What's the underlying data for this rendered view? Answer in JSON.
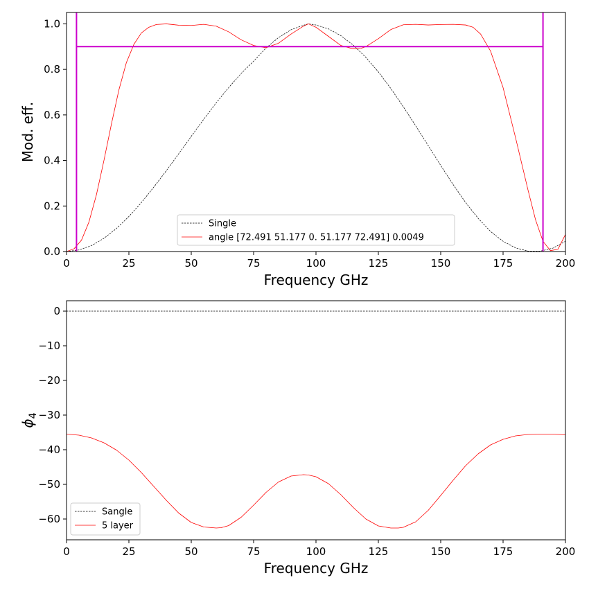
{
  "chart_data": [
    {
      "type": "line",
      "xlabel": "Frequency GHz",
      "ylabel": "Mod. eff.",
      "xlim": [
        0,
        200
      ],
      "ylim": [
        0,
        1.05
      ],
      "xticks": [
        0,
        25,
        50,
        75,
        100,
        125,
        150,
        175,
        200
      ],
      "xtick_labels": [
        "0",
        "25",
        "50",
        "75",
        "100",
        "125",
        "150",
        "175",
        "200"
      ],
      "yticks": [
        0.0,
        0.2,
        0.4,
        0.6,
        0.8,
        1.0
      ],
      "ytick_labels": [
        "0.0",
        "0.2",
        "0.4",
        "0.6",
        "0.8",
        "1.0"
      ],
      "grid": false,
      "legend_position": "bottom-center",
      "series": [
        {
          "name": "Single",
          "color": "#000000",
          "style": "dashed",
          "x": [
            0,
            5,
            10,
            15,
            20,
            25,
            30,
            35,
            40,
            45,
            50,
            55,
            60,
            65,
            70,
            75,
            80,
            85,
            90,
            95,
            97,
            100,
            105,
            110,
            115,
            120,
            125,
            130,
            135,
            140,
            145,
            150,
            155,
            160,
            165,
            170,
            175,
            180,
            185,
            190,
            195,
            200
          ],
          "y": [
            0.0,
            0.007,
            0.026,
            0.058,
            0.101,
            0.154,
            0.215,
            0.283,
            0.355,
            0.43,
            0.506,
            0.581,
            0.653,
            0.72,
            0.782,
            0.836,
            0.894,
            0.94,
            0.974,
            0.994,
            1.0,
            0.995,
            0.978,
            0.948,
            0.906,
            0.853,
            0.789,
            0.716,
            0.636,
            0.552,
            0.465,
            0.378,
            0.294,
            0.215,
            0.146,
            0.088,
            0.045,
            0.016,
            0.002,
            0.002,
            0.015,
            0.045
          ]
        },
        {
          "name": "angle [72.491 51.177  0.    51.177 72.491] 0.0049",
          "color": "#ff0000",
          "style": "solid",
          "x": [
            0,
            3,
            6,
            9,
            12,
            15,
            18,
            21,
            24,
            27,
            30,
            33,
            36,
            40,
            45,
            50,
            55,
            60,
            65,
            70,
            75,
            80,
            85,
            90,
            95,
            97,
            100,
            105,
            110,
            115,
            118,
            120,
            125,
            130,
            135,
            140,
            145,
            150,
            155,
            160,
            163,
            166,
            170,
            175,
            180,
            185,
            188,
            191,
            194,
            197,
            200
          ],
          "y": [
            0.0,
            0.012,
            0.05,
            0.13,
            0.25,
            0.4,
            0.56,
            0.71,
            0.83,
            0.91,
            0.96,
            0.985,
            0.997,
            1.0,
            0.994,
            0.993,
            0.998,
            0.99,
            0.965,
            0.93,
            0.905,
            0.895,
            0.915,
            0.955,
            0.99,
            1.0,
            0.985,
            0.945,
            0.905,
            0.89,
            0.892,
            0.9,
            0.935,
            0.975,
            0.996,
            0.998,
            0.995,
            0.997,
            0.998,
            0.995,
            0.985,
            0.955,
            0.88,
            0.72,
            0.5,
            0.27,
            0.14,
            0.045,
            0.004,
            0.01,
            0.075
          ]
        }
      ],
      "annotations": {
        "color": "#cc00cc",
        "hline_y": 0.9,
        "hline_x": [
          4,
          191
        ],
        "vlines_x": [
          4,
          191
        ]
      }
    },
    {
      "type": "line",
      "xlabel": "Frequency GHz",
      "ylabel": "ϕ",
      "ylabel_subscript": "4",
      "xlim": [
        0,
        200
      ],
      "ylim": [
        -66,
        3
      ],
      "xticks": [
        0,
        25,
        50,
        75,
        100,
        125,
        150,
        175,
        200
      ],
      "xtick_labels": [
        "0",
        "25",
        "50",
        "75",
        "100",
        "125",
        "150",
        "175",
        "200"
      ],
      "yticks": [
        0,
        -10,
        -20,
        -30,
        -40,
        -50,
        -60
      ],
      "ytick_labels": [
        "0",
        "−10",
        "−20",
        "−30",
        "−40",
        "−50",
        "−60"
      ],
      "grid": false,
      "legend_position": "bottom-left",
      "series": [
        {
          "name": "Sangle",
          "color": "#000000",
          "style": "dashed",
          "x": [
            0,
            200
          ],
          "y": [
            0,
            0
          ]
        },
        {
          "name": "5 layer",
          "color": "#ff0000",
          "style": "solid",
          "x": [
            0,
            5,
            10,
            15,
            20,
            25,
            30,
            35,
            40,
            45,
            50,
            55,
            60,
            62,
            65,
            70,
            75,
            80,
            85,
            90,
            95,
            97,
            100,
            105,
            110,
            115,
            120,
            125,
            130,
            133,
            135,
            140,
            145,
            150,
            155,
            160,
            165,
            170,
            175,
            180,
            185,
            190,
            195,
            200
          ],
          "y": [
            -35.5,
            -35.8,
            -36.6,
            -38.0,
            -40.1,
            -43.0,
            -46.6,
            -50.6,
            -54.6,
            -58.3,
            -61.0,
            -62.3,
            -62.6,
            -62.5,
            -61.9,
            -59.5,
            -56.0,
            -52.3,
            -49.3,
            -47.6,
            -47.2,
            -47.3,
            -47.8,
            -49.8,
            -53.0,
            -56.7,
            -60.0,
            -62.0,
            -62.6,
            -62.6,
            -62.4,
            -60.8,
            -57.5,
            -53.2,
            -48.8,
            -44.6,
            -41.2,
            -38.6,
            -37.0,
            -36.0,
            -35.6,
            -35.5,
            -35.5,
            -35.7
          ]
        }
      ]
    }
  ]
}
